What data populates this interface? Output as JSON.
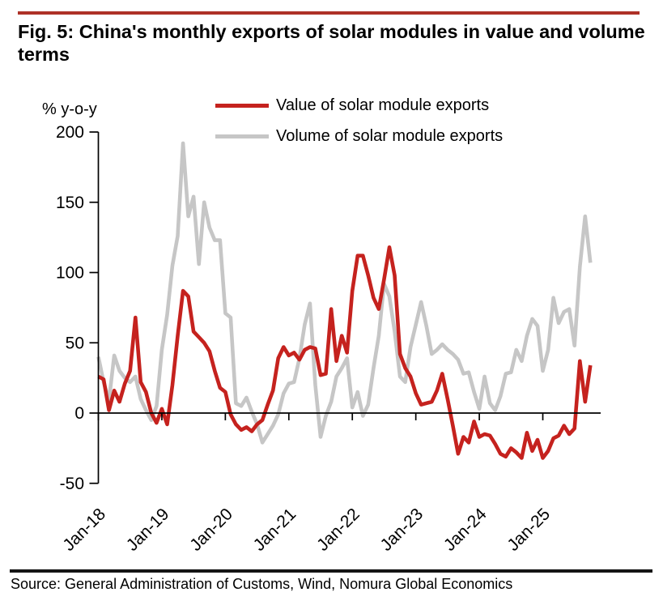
{
  "figure": {
    "title": "Fig. 5: China's monthly exports of solar modules in value and volume terms",
    "source": "Source: General Administration of Customs, Wind, Nomura Global Economics"
  },
  "colors": {
    "accent_rule": "#ae3127",
    "footer_rule": "#141414",
    "axis": "#000000",
    "value_series": "#c5221e",
    "volume_series": "#c6c6c6"
  },
  "chart_data": {
    "type": "line",
    "title": "Fig. 5: China's monthly exports of solar modules in value and volume terms",
    "y_axis_label": "% y-o-y",
    "ylim": [
      -50,
      200
    ],
    "y_ticks": [
      200,
      150,
      100,
      50,
      0,
      -50
    ],
    "x_tick_labels": [
      "Jan-18",
      "Jan-19",
      "Jan-20",
      "Jan-21",
      "Jan-22",
      "Jan-23",
      "Jan-24",
      "Jan-25"
    ],
    "grid": false,
    "legend_position": "top",
    "categories": [
      "Jan-18",
      "Feb-18",
      "Mar-18",
      "Apr-18",
      "May-18",
      "Jun-18",
      "Jul-18",
      "Aug-18",
      "Sep-18",
      "Oct-18",
      "Nov-18",
      "Dec-18",
      "Jan-19",
      "Feb-19",
      "Mar-19",
      "Apr-19",
      "May-19",
      "Jun-19",
      "Jul-19",
      "Aug-19",
      "Sep-19",
      "Oct-19",
      "Nov-19",
      "Dec-19",
      "Jan-20",
      "Feb-20",
      "Mar-20",
      "Apr-20",
      "May-20",
      "Jun-20",
      "Jul-20",
      "Aug-20",
      "Sep-20",
      "Oct-20",
      "Nov-20",
      "Dec-20",
      "Jan-21",
      "Feb-21",
      "Mar-21",
      "Apr-21",
      "May-21",
      "Jun-21",
      "Jul-21",
      "Aug-21",
      "Sep-21",
      "Oct-21",
      "Nov-21",
      "Dec-21",
      "Jan-22",
      "Feb-22",
      "Mar-22",
      "Apr-22",
      "May-22",
      "Jun-22",
      "Jul-22",
      "Aug-22",
      "Sep-22",
      "Oct-22",
      "Nov-22",
      "Dec-22",
      "Jan-23",
      "Feb-23",
      "Mar-23",
      "Apr-23",
      "May-23",
      "Jun-23",
      "Jul-23",
      "Aug-23",
      "Sep-23",
      "Oct-23",
      "Nov-23",
      "Dec-23",
      "Jan-24",
      "Feb-24",
      "Mar-24",
      "Apr-24",
      "May-24",
      "Jun-24",
      "Jul-24",
      "Aug-24",
      "Sep-24",
      "Oct-24",
      "Nov-24",
      "Dec-24",
      "Jan-25",
      "Feb-25",
      "Mar-25",
      "Apr-25",
      "May-25",
      "Jun-25",
      "Jul-25",
      "Aug-25",
      "Sep-25",
      "Oct-25"
    ],
    "series": [
      {
        "name": "Value of solar module exports",
        "color": "#c5221e",
        "values": [
          26,
          24,
          2,
          16,
          8,
          21,
          30,
          68,
          22,
          15,
          0,
          -7,
          3,
          -8,
          20,
          55,
          87,
          83,
          58,
          54,
          50,
          44,
          30,
          18,
          15,
          -1,
          -8,
          -12,
          -10,
          -13,
          -8,
          -5,
          6,
          16,
          39,
          47,
          41,
          43,
          38,
          45,
          47,
          46,
          27,
          28,
          74,
          37,
          55,
          43,
          87,
          112,
          112,
          98,
          82,
          74,
          95,
          118,
          98,
          42,
          32,
          26,
          14,
          6,
          7,
          8,
          16,
          28,
          10,
          -9,
          -29,
          -17,
          -21,
          -6,
          -17,
          -15,
          -16,
          -22,
          -29,
          -31,
          -25,
          -28,
          -32,
          -14,
          -27,
          -19,
          -32,
          -27,
          -18,
          -16,
          -9,
          -15,
          -11,
          37,
          8,
          34
        ]
      },
      {
        "name": "Volume of solar module exports",
        "color": "#c6c6c6",
        "values": [
          40,
          22,
          9,
          41,
          30,
          25,
          22,
          26,
          10,
          2,
          -5,
          5,
          45,
          70,
          105,
          126,
          192,
          140,
          154,
          106,
          150,
          132,
          123,
          123,
          71,
          68,
          7,
          5,
          11,
          1,
          -8,
          -21,
          -15,
          -9,
          -1,
          14,
          21,
          22,
          39,
          63,
          78,
          20,
          -17,
          -2,
          8,
          26,
          32,
          39,
          4,
          15,
          -2,
          6,
          32,
          55,
          92,
          83,
          58,
          26,
          22,
          47,
          63,
          79,
          62,
          42,
          45,
          49,
          45,
          42,
          38,
          28,
          29,
          15,
          3,
          26,
          7,
          2,
          12,
          28,
          29,
          45,
          37,
          55,
          67,
          62,
          30,
          45,
          82,
          64,
          72,
          74,
          48,
          104,
          140,
          107
        ]
      }
    ]
  }
}
